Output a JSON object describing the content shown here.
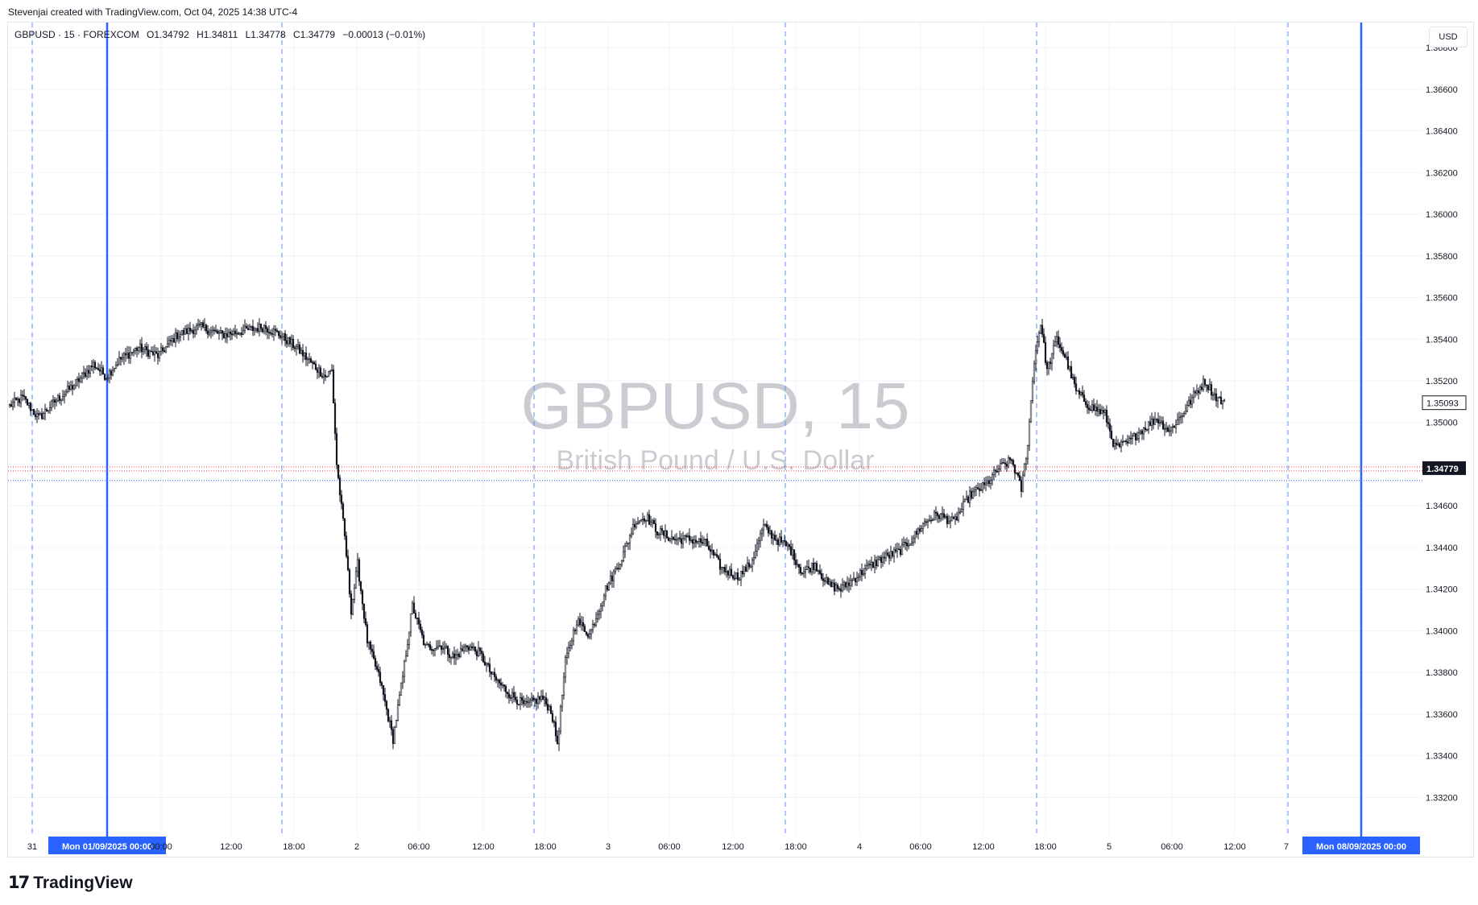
{
  "credit": "Stevenjai created with TradingView.com, Oct 04, 2025 14:38 UTC-4",
  "legend": {
    "symbol": "GBPUSD · 15 · FOREXCOM",
    "open": "O1.34792",
    "high": "H1.34811",
    "low": "L1.34778",
    "close": "C1.34779",
    "change": "−0.00013 (−0.01%)"
  },
  "currency": "USD",
  "watermark": {
    "symbol": "GBPUSD, 15",
    "description": "British Pound / U.S. Dollar"
  },
  "footer": {
    "logo_text": "TradingView"
  },
  "colors": {
    "candle": "#131722",
    "grid": "#f0f3fa",
    "vline_dashed": "#5b8ff0",
    "vline_solid": "#2962ff",
    "price_line_red": "#f23645",
    "price_line_blue": "#2962ff",
    "watermark": "#c2c4cb"
  },
  "chart_data": {
    "type": "candlestick",
    "interval": "15",
    "y_axis": {
      "ticks": [
        "1.36800",
        "1.36600",
        "1.36400",
        "1.36200",
        "1.36000",
        "1.35800",
        "1.35600",
        "1.35400",
        "1.35200",
        "1.35000",
        "1.34800",
        "1.34600",
        "1.34400",
        "1.34200",
        "1.34000",
        "1.33800",
        "1.33600",
        "1.33400",
        "1.33200"
      ],
      "ylim": [
        1.3302,
        1.3692
      ],
      "last_price_label": "1.34779",
      "other_price_label": "1.35093"
    },
    "x_axis": {
      "ticks": [
        "31",
        "00:00",
        "12:00",
        "18:00",
        "2",
        "06:00",
        "12:00",
        "18:00",
        "3",
        "06:00",
        "12:00",
        "18:00",
        "4",
        "06:00",
        "12:00",
        "18:00",
        "5",
        "06:00",
        "12:00",
        "7"
      ],
      "session_labels": [
        "Mon 01/09/2025   00:00",
        "Mon 08/09/2025   00:00"
      ]
    },
    "price_lines": [
      1.34779,
      1.34745
    ],
    "path": [
      [
        0,
        1.3508
      ],
      [
        8,
        1.3512
      ],
      [
        18,
        1.3502
      ],
      [
        28,
        1.351
      ],
      [
        40,
        1.3518
      ],
      [
        52,
        1.3528
      ],
      [
        60,
        1.3522
      ],
      [
        68,
        1.353
      ],
      [
        80,
        1.3536
      ],
      [
        92,
        1.3532
      ],
      [
        104,
        1.3542
      ],
      [
        118,
        1.3546
      ],
      [
        132,
        1.3542
      ],
      [
        145,
        1.3544
      ],
      [
        158,
        1.3546
      ],
      [
        168,
        1.3542
      ],
      [
        178,
        1.3536
      ],
      [
        188,
        1.3528
      ],
      [
        196,
        1.3522
      ],
      [
        200,
        1.3525
      ],
      [
        203,
        1.348
      ],
      [
        208,
        1.3445
      ],
      [
        212,
        1.341
      ],
      [
        216,
        1.3432
      ],
      [
        222,
        1.3395
      ],
      [
        230,
        1.3376
      ],
      [
        238,
        1.3348
      ],
      [
        244,
        1.3378
      ],
      [
        250,
        1.3412
      ],
      [
        258,
        1.3392
      ],
      [
        268,
        1.3393
      ],
      [
        276,
        1.3387
      ],
      [
        284,
        1.3393
      ],
      [
        292,
        1.3389
      ],
      [
        300,
        1.3378
      ],
      [
        310,
        1.337
      ],
      [
        320,
        1.3364
      ],
      [
        330,
        1.3368
      ],
      [
        336,
        1.3362
      ],
      [
        340,
        1.3346
      ],
      [
        345,
        1.3385
      ],
      [
        352,
        1.3405
      ],
      [
        360,
        1.3398
      ],
      [
        370,
        1.342
      ],
      [
        380,
        1.3435
      ],
      [
        388,
        1.3452
      ],
      [
        395,
        1.3455
      ],
      [
        402,
        1.3448
      ],
      [
        412,
        1.3444
      ],
      [
        422,
        1.3444
      ],
      [
        432,
        1.3442
      ],
      [
        442,
        1.343
      ],
      [
        452,
        1.3426
      ],
      [
        460,
        1.3432
      ],
      [
        468,
        1.345
      ],
      [
        476,
        1.3444
      ],
      [
        484,
        1.344
      ],
      [
        492,
        1.3428
      ],
      [
        500,
        1.3432
      ],
      [
        508,
        1.3422
      ],
      [
        516,
        1.342
      ],
      [
        524,
        1.3425
      ],
      [
        532,
        1.343
      ],
      [
        542,
        1.3435
      ],
      [
        552,
        1.3438
      ],
      [
        560,
        1.3444
      ],
      [
        568,
        1.3452
      ],
      [
        576,
        1.3456
      ],
      [
        586,
        1.3452
      ],
      [
        596,
        1.3465
      ],
      [
        606,
        1.347
      ],
      [
        614,
        1.3478
      ],
      [
        622,
        1.3482
      ],
      [
        628,
        1.3468
      ],
      [
        632,
        1.349
      ],
      [
        636,
        1.353
      ],
      [
        640,
        1.3548
      ],
      [
        644,
        1.3525
      ],
      [
        650,
        1.354
      ],
      [
        656,
        1.353
      ],
      [
        662,
        1.3515
      ],
      [
        670,
        1.3508
      ],
      [
        680,
        1.3504
      ],
      [
        686,
        1.3488
      ],
      [
        694,
        1.349
      ],
      [
        702,
        1.3496
      ],
      [
        712,
        1.3502
      ],
      [
        720,
        1.3496
      ],
      [
        728,
        1.3504
      ],
      [
        736,
        1.3514
      ],
      [
        742,
        1.352
      ],
      [
        748,
        1.3513
      ],
      [
        754,
        1.3509
      ]
    ]
  }
}
